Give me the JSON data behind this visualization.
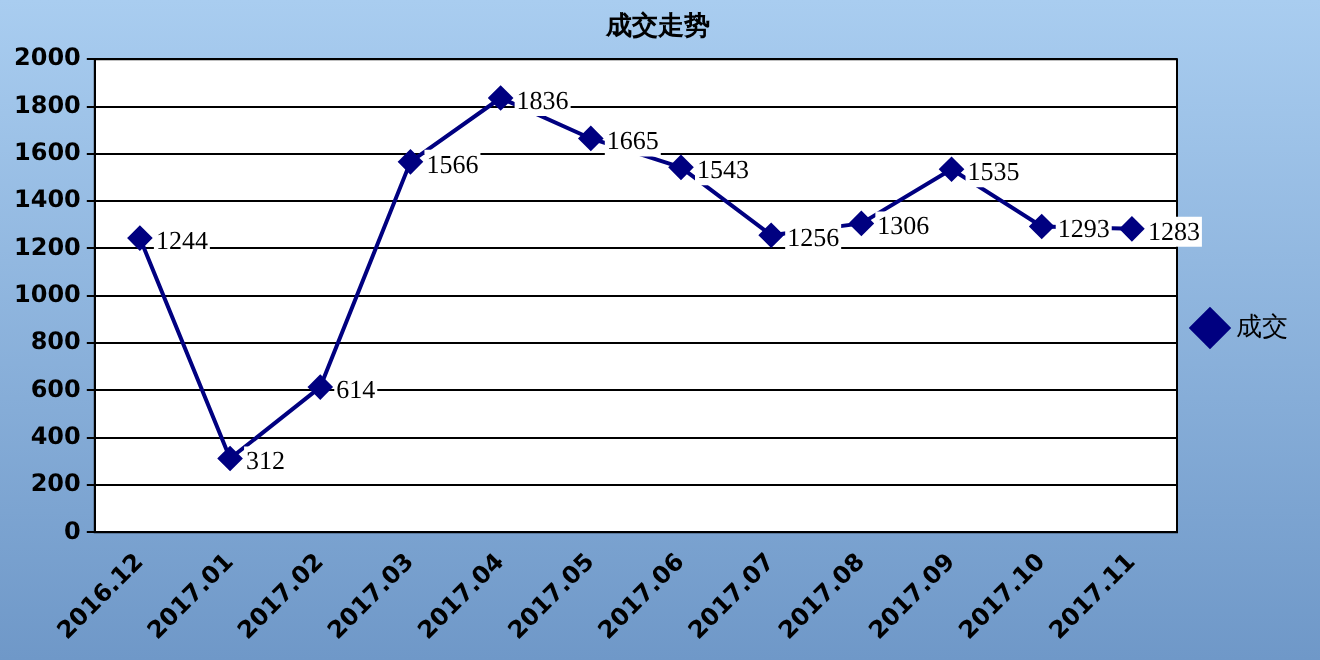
{
  "chart_data": {
    "type": "line",
    "title": "成交走势",
    "categories": [
      "2016.12",
      "2017.01",
      "2017.02",
      "2017.03",
      "2017.04",
      "2017.05",
      "2017.06",
      "2017.07",
      "2017.08",
      "2017.09",
      "2017.10",
      "2017.11"
    ],
    "series": [
      {
        "name": "成交",
        "color": "#000080",
        "values": [
          1244,
          312,
          614,
          1566,
          1836,
          1665,
          1543,
          1256,
          1306,
          1535,
          1293,
          1283
        ]
      }
    ],
    "ylim": [
      0,
      2000
    ],
    "yticks": [
      0,
      200,
      400,
      600,
      800,
      1000,
      1200,
      1400,
      1600,
      1800,
      2000
    ],
    "grid": "y",
    "legend": "right",
    "marker": "diamond",
    "line_style": "solid",
    "data_labels": true
  }
}
